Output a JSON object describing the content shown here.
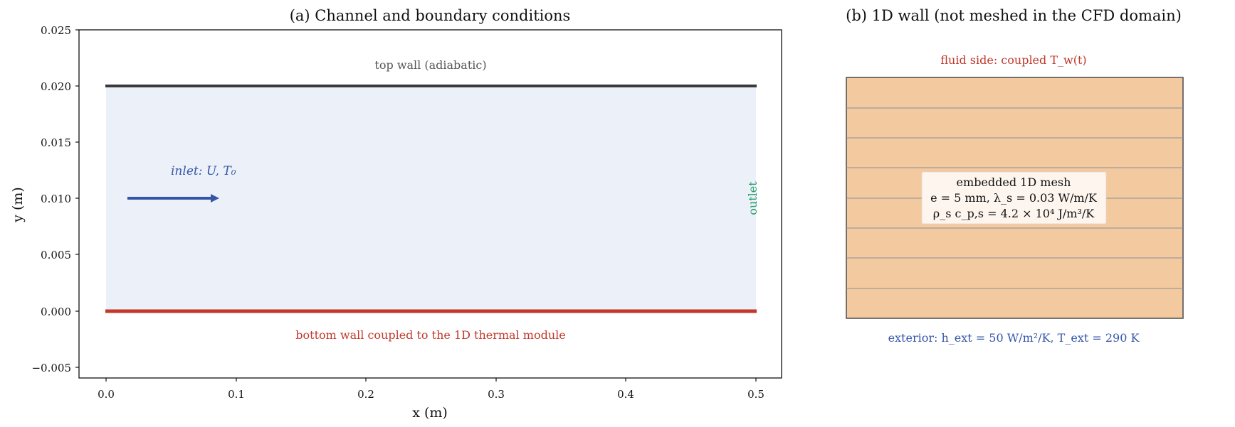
{
  "panel_a": {
    "title": "(a) Channel and boundary conditions",
    "xlabel": "x (m)",
    "ylabel": "y (m)",
    "x_ticks": [
      "0.0",
      "0.1",
      "0.2",
      "0.3",
      "0.4",
      "0.5"
    ],
    "y_ticks": [
      "0.025",
      "0.020",
      "0.015",
      "0.010",
      "0.005",
      "0.000",
      "−0.005"
    ],
    "top_wall_label": "top wall (adiabatic)",
    "bottom_wall_label": "bottom wall coupled to the 1D thermal module",
    "inlet_label": "inlet: U, T₀",
    "outlet_label": "outlet",
    "colors": {
      "fluid_fill": "#ecf1f9",
      "top_wall": "#3a3a3a",
      "bottom_wall": "#c0392b",
      "inlet": "#3555a8",
      "outlet": "#27a06a"
    }
  },
  "panel_b": {
    "title": "(b) 1D wall (not meshed in the CFD domain)",
    "fluid_side_label": "fluid side: coupled T_w(t)",
    "exterior_label": "exterior: h_ext = 50 W/m²/K, T_ext = 290 K",
    "info_lines": [
      "embedded 1D mesh",
      "e = 5 mm, λ_s = 0.03 W/m/K",
      "ρ_s c_p,s = 4.2 × 10⁴ J/m³/K"
    ],
    "colors": {
      "wall_fill": "#f3c9a0",
      "grid_line": "#8a8f98",
      "fluid_side": "#c0392b",
      "exterior": "#3555a8"
    }
  },
  "chart_data": [
    {
      "type": "diagram",
      "title": "(a) Channel and boundary conditions",
      "xlabel": "x (m)",
      "ylabel": "y (m)",
      "xlim": [
        -0.02,
        0.52
      ],
      "ylim": [
        -0.006,
        0.025
      ],
      "x_ticks": [
        0.0,
        0.1,
        0.2,
        0.3,
        0.4,
        0.5
      ],
      "y_ticks": [
        0.025,
        0.02,
        0.015,
        0.01,
        0.005,
        0.0,
        -0.005
      ],
      "channel": {
        "x": [
          0.0,
          0.5
        ],
        "y": [
          0.0,
          0.02
        ]
      },
      "inlet_arrow": {
        "x": [
          0.017,
          0.087
        ],
        "y": 0.01
      }
    }
  ]
}
